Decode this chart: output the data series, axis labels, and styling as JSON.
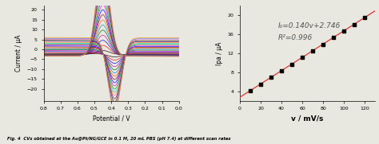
{
  "left_panel": {
    "xlabel": "Potential / V",
    "ylabel": "Current / μA",
    "xlim": [
      0.8,
      0.0
    ],
    "ylim": [
      -26,
      22
    ],
    "xticks": [
      0.8,
      0.7,
      0.6,
      0.5,
      0.4,
      0.3,
      0.2,
      0.1,
      0.0
    ],
    "yticks": [
      -20,
      -15,
      -10,
      -5,
      0,
      5,
      10,
      15,
      20
    ],
    "num_curves": 18
  },
  "right_panel": {
    "xlabel": "v / mV/s",
    "ylabel": "Ipa / μA",
    "xlim": [
      0,
      130
    ],
    "ylim": [
      2,
      22
    ],
    "xticks": [
      0,
      20,
      40,
      60,
      80,
      100,
      120
    ],
    "yticks": [
      4,
      8,
      12,
      16,
      20
    ],
    "equation": "I₀=0.140v+2.746",
    "r_squared": "R²=0.996",
    "slope": 0.14,
    "intercept": 2.746,
    "scatter_x": [
      10,
      20,
      30,
      40,
      50,
      60,
      70,
      80,
      90,
      100,
      110,
      120
    ],
    "scatter_y": [
      4.1,
      5.5,
      6.9,
      8.3,
      9.7,
      11.1,
      12.5,
      13.9,
      15.3,
      16.7,
      18.1,
      19.5
    ],
    "line_color": "#DD3333",
    "dot_color": "black",
    "annotation_fontsize": 6.5
  },
  "caption": "Fig. 4  CVs obtained at the Au@Pt/NG/GCE in 0.1 M, 20 mL PBS (pH 7.4) at different scan rates",
  "background_color": "#e8e8e0"
}
